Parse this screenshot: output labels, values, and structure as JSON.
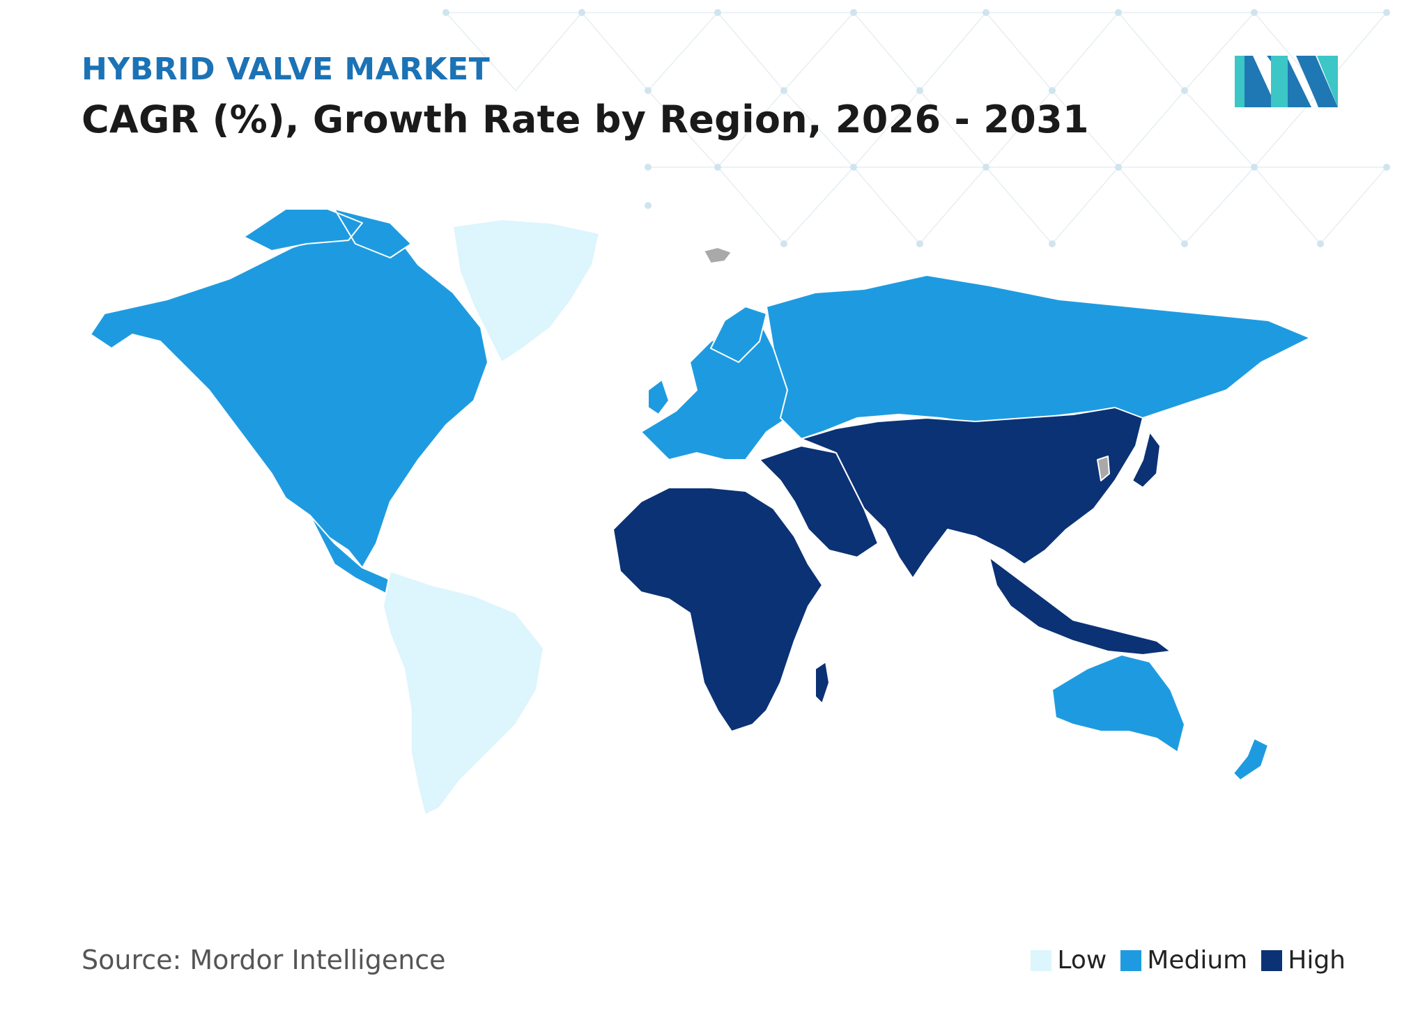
{
  "header": {
    "kicker": "HYBRID VALVE MARKET",
    "title": "CAGR (%), Growth Rate by Region, 2026 - 2031"
  },
  "footer": {
    "source": "Source: Mordor Intelligence"
  },
  "legend": [
    {
      "label": "Low",
      "color": "#DDF5FC"
    },
    {
      "label": "Medium",
      "color": "#1E9BE0"
    },
    {
      "label": "High",
      "color": "#0B3275"
    }
  ],
  "colors": {
    "kicker": "#1B72B5",
    "no_data": "#A9A9A9",
    "logo_dark": "#1F78B4",
    "logo_light": "#3CC6C6"
  },
  "map": {
    "regions": [
      {
        "name": "North America",
        "level": "Medium"
      },
      {
        "name": "Greenland",
        "level": "Low"
      },
      {
        "name": "South America",
        "level": "Low"
      },
      {
        "name": "Europe",
        "level": "Medium"
      },
      {
        "name": "Russia",
        "level": "Medium"
      },
      {
        "name": "Middle East",
        "level": "High"
      },
      {
        "name": "Africa",
        "level": "High"
      },
      {
        "name": "Asia",
        "level": "High"
      },
      {
        "name": "Australia and New Zealand",
        "level": "Medium"
      }
    ]
  }
}
